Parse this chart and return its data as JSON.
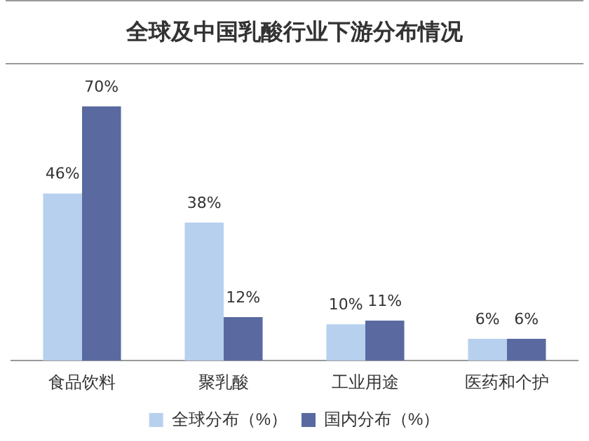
{
  "chart_data": {
    "type": "bar",
    "title": "全球及中国乳酸行业下游分布情况",
    "categories": [
      "食品饮料",
      "聚乳酸",
      "工业用途",
      "医药和个护"
    ],
    "series": [
      {
        "name": "全球分布（%）",
        "color": "#b7d0ee",
        "values": [
          46,
          38,
          10,
          6
        ],
        "value_labels": [
          "46%",
          "38%",
          "10%",
          "6%"
        ]
      },
      {
        "name": "国内分布（%）",
        "color": "#5a6aa0",
        "values": [
          70,
          12,
          11,
          6
        ],
        "value_labels": [
          "70%",
          "12%",
          "11%",
          "6%"
        ]
      }
    ],
    "tick_labels": "x",
    "legend": "bottom"
  }
}
